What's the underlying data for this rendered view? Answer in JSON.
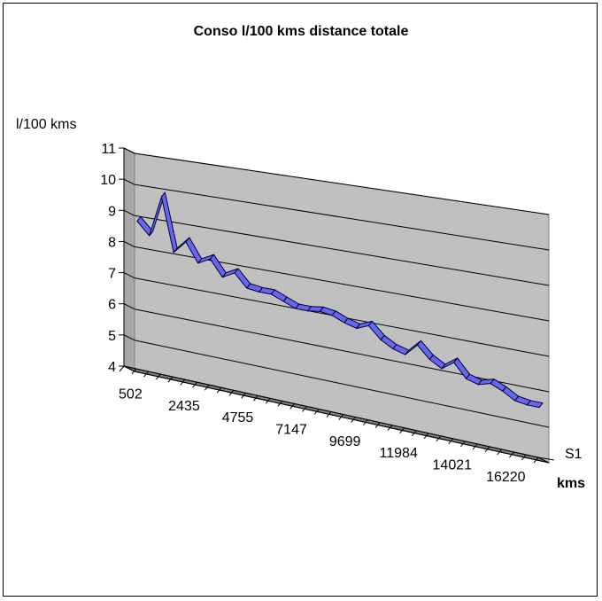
{
  "chart_data": {
    "type": "line",
    "style": "3d-line",
    "title": "Conso l/100 kms distance totale",
    "ylabel": "l/100 kms",
    "xlabel": "kms",
    "depth_label": "S1",
    "ylim": [
      4,
      11
    ],
    "yticks": [
      "4",
      "5",
      "6",
      "7",
      "8",
      "9",
      "10",
      "11"
    ],
    "xtick_labels": [
      "502",
      "2435",
      "4755",
      "7147",
      "9699",
      "11984",
      "14021",
      "16220"
    ],
    "grid": true,
    "colors": {
      "line": "#6666ee",
      "line_edge": "#000033",
      "wall": "#c0c0c0",
      "floor": "#808080"
    },
    "series": [
      {
        "name": "S1",
        "values": [
          9.0,
          8.6,
          9.9,
          8.2,
          8.6,
          8.0,
          8.2,
          7.7,
          7.9,
          7.5,
          7.45,
          7.45,
          7.3,
          7.15,
          7.15,
          7.2,
          7.15,
          7.0,
          6.9,
          7.05,
          6.7,
          6.5,
          6.4,
          6.75,
          6.4,
          6.2,
          6.45,
          6.05,
          5.95,
          6.05,
          5.9,
          5.7,
          5.65,
          5.65
        ]
      }
    ]
  }
}
